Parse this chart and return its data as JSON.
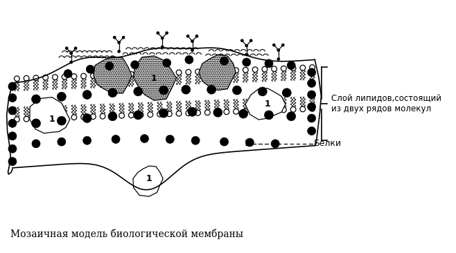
{
  "title": "Мозаичная модель биологической мембраны",
  "label_lipids_line1": "Слой липидов,состоящий",
  "label_lipids_line2": "из двух рядов молекул",
  "label_proteins": "Белки",
  "label_1": "1",
  "bg_color": "#ffffff",
  "black": "#000000",
  "white": "#ffffff",
  "light_gray": "#f5f5f5",
  "dotted_gray": "#d8d8d8"
}
